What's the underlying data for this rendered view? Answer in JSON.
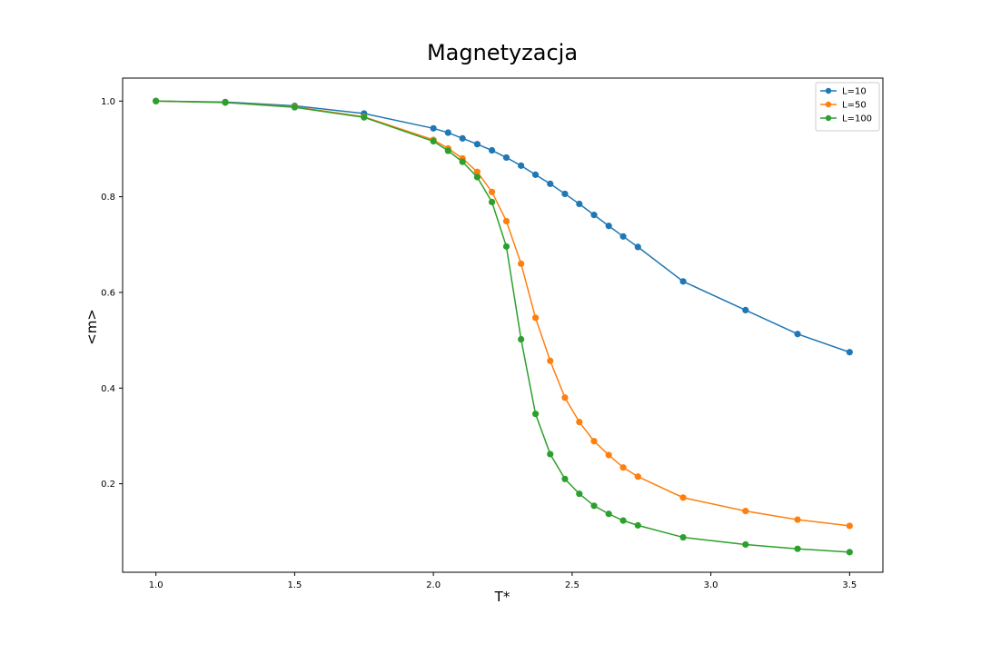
{
  "chart_data": {
    "type": "line",
    "title": "Magnetyzacja",
    "xlabel": "T*",
    "ylabel": "<m>",
    "xlim": [
      0.88,
      3.62
    ],
    "ylim": [
      0.015,
      1.048
    ],
    "xticks": [
      1.0,
      1.5,
      2.0,
      2.5,
      3.0,
      3.5
    ],
    "xtick_labels": [
      "1.0",
      "1.5",
      "2.0",
      "2.5",
      "3.0",
      "3.5"
    ],
    "yticks": [
      0.2,
      0.4,
      0.6,
      0.8,
      1.0
    ],
    "ytick_labels": [
      "0.2",
      "0.4",
      "0.6",
      "0.8",
      "1.0"
    ],
    "grid": false,
    "legend_position": "top-right",
    "x": [
      1.0,
      1.25,
      1.5,
      1.75,
      2.0,
      2.053,
      2.105,
      2.158,
      2.211,
      2.263,
      2.316,
      2.368,
      2.421,
      2.474,
      2.526,
      2.579,
      2.632,
      2.684,
      2.737,
      2.9,
      3.125,
      3.3125,
      3.5
    ],
    "series": [
      {
        "name": "L=10",
        "color": "#1f77b4",
        "x": [
          1.0,
          1.25,
          1.5,
          1.75,
          2.0,
          2.053,
          2.105,
          2.158,
          2.211,
          2.263,
          2.316,
          2.368,
          2.421,
          2.474,
          2.526,
          2.579,
          2.632,
          2.684,
          2.737,
          2.9,
          3.125,
          3.3125,
          3.5
        ],
        "values": [
          1.0,
          0.998,
          0.99,
          0.974,
          0.943,
          0.934,
          0.922,
          0.91,
          0.897,
          0.882,
          0.865,
          0.846,
          0.827,
          0.806,
          0.785,
          0.762,
          0.739,
          0.717,
          0.695,
          0.623,
          0.563,
          0.513,
          0.475
        ]
      },
      {
        "name": "L=50",
        "color": "#ff7f0e",
        "x": [
          1.0,
          1.25,
          1.5,
          1.75,
          2.0,
          2.053,
          2.105,
          2.158,
          2.211,
          2.263,
          2.316,
          2.368,
          2.421,
          2.474,
          2.526,
          2.579,
          2.632,
          2.684,
          2.737,
          2.9,
          3.125,
          3.3125,
          3.5
        ],
        "values": [
          1.0,
          0.997,
          0.988,
          0.967,
          0.919,
          0.901,
          0.88,
          0.852,
          0.81,
          0.749,
          0.66,
          0.547,
          0.457,
          0.38,
          0.329,
          0.289,
          0.26,
          0.234,
          0.215,
          0.171,
          0.143,
          0.125,
          0.112
        ]
      },
      {
        "name": "L=100",
        "color": "#2ca02c",
        "x": [
          1.0,
          1.25,
          1.5,
          1.75,
          2.0,
          2.053,
          2.105,
          2.158,
          2.211,
          2.263,
          2.316,
          2.368,
          2.421,
          2.474,
          2.526,
          2.579,
          2.632,
          2.684,
          2.737,
          2.9,
          3.125,
          3.3125,
          3.5
        ],
        "values": [
          1.0,
          0.997,
          0.987,
          0.966,
          0.916,
          0.896,
          0.873,
          0.841,
          0.789,
          0.696,
          0.502,
          0.346,
          0.262,
          0.21,
          0.179,
          0.154,
          0.137,
          0.123,
          0.113,
          0.088,
          0.073,
          0.064,
          0.057
        ]
      }
    ]
  }
}
